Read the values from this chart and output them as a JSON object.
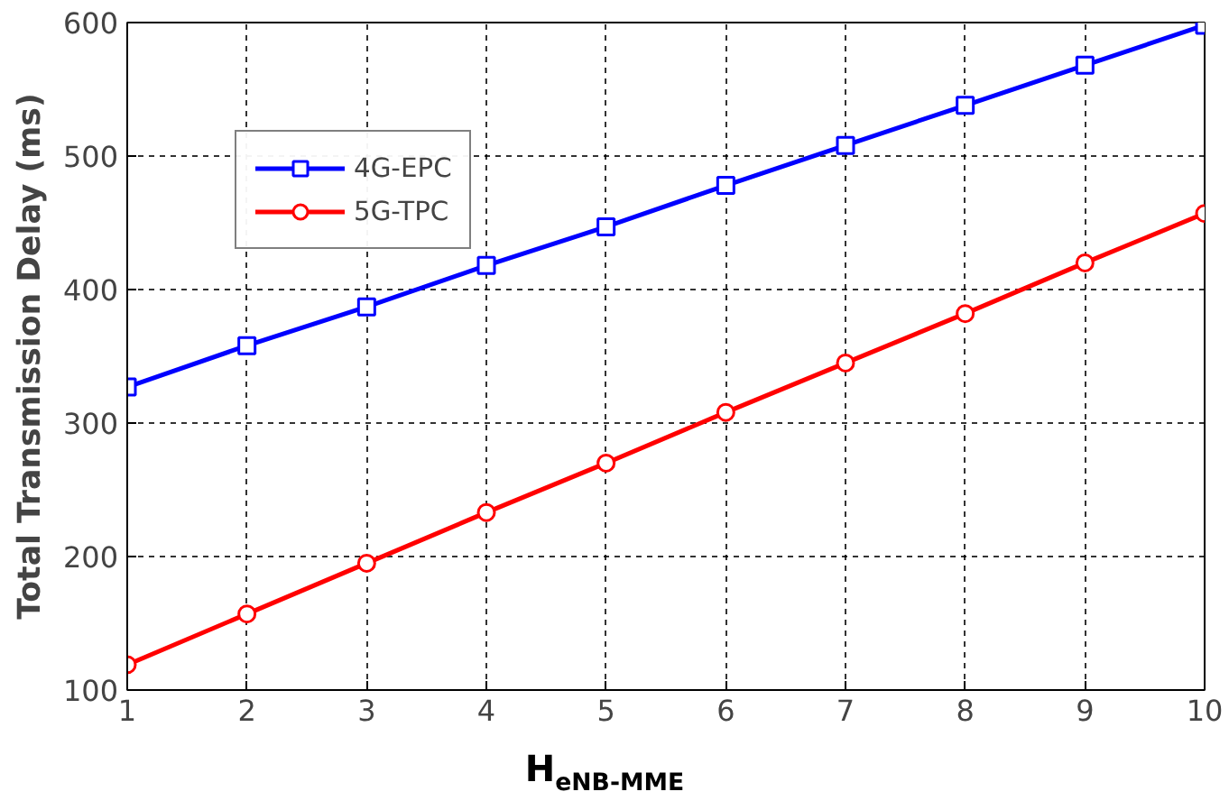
{
  "chart_data": {
    "type": "line",
    "xlabel": "H$_{eNB-MME}$",
    "ylabel": "Total Transmission Delay (ms)",
    "x": [
      1,
      2,
      3,
      4,
      5,
      6,
      7,
      8,
      9,
      10
    ],
    "series": [
      {
        "name": "4G-EPC",
        "color": "#0000ff",
        "marker": "square",
        "values": [
          327,
          358,
          387,
          418,
          447,
          478,
          508,
          538,
          568,
          598
        ]
      },
      {
        "name": "5G-TPC",
        "color": "#ff0000",
        "marker": "circle",
        "values": [
          119,
          157,
          195,
          233,
          270,
          308,
          345,
          382,
          420,
          457
        ]
      }
    ],
    "xlim": [
      1,
      10
    ],
    "ylim": [
      100,
      600
    ],
    "xticks": [
      1,
      2,
      3,
      4,
      5,
      6,
      7,
      8,
      9,
      10
    ],
    "yticks": [
      100,
      200,
      300,
      400,
      500,
      600
    ],
    "grid": true,
    "legend": "top left",
    "line_style": "solid"
  }
}
